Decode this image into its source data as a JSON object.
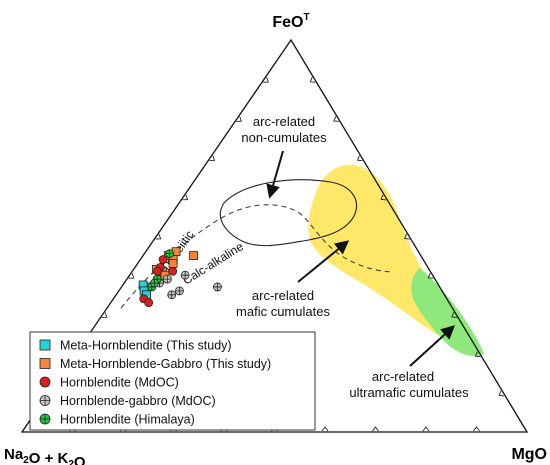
{
  "chart_data": {
    "type": "ternary",
    "vertices": {
      "top": {
        "main": "FeO",
        "sup": "T"
      },
      "left": {
        "parts": [
          [
            "Na",
            ""
          ],
          [
            "2",
            "sub"
          ],
          [
            "O + K",
            ""
          ],
          [
            "2",
            "sub"
          ],
          [
            "O",
            ""
          ]
        ]
      },
      "right": {
        "main": "MgO"
      }
    },
    "divisions": 10,
    "series_labels": {
      "tholeiitic": "Tholeiitic",
      "calc_alkaline": "Calc-alkaline"
    },
    "annotations": [
      {
        "id": "nc",
        "lines": [
          "arc-related",
          "non-cumulates"
        ]
      },
      {
        "id": "mc",
        "lines": [
          "arc-related",
          "mafic cumulates"
        ]
      },
      {
        "id": "uc",
        "lines": [
          "arc-related",
          "ultramafic cumulates"
        ]
      }
    ],
    "fields": {
      "mafic_color": "#ffe76a",
      "ultramafic_color": "#8ee87c"
    },
    "series": [
      {
        "name": "Meta-Hornblendite (This study)",
        "marker": "square",
        "color": "#22d3dc",
        "points": [
          [
            37,
            58,
            5
          ],
          [
            37.5,
            58.5,
            4
          ],
          [
            36,
            59,
            5
          ],
          [
            35,
            59,
            6
          ]
        ]
      },
      {
        "name": "Meta-Hornblende-Gabbro (This study)",
        "marker": "square",
        "color": "#f4853a",
        "points": [
          [
            45,
            50,
            5
          ],
          [
            46,
            48,
            6
          ],
          [
            44,
            49.5,
            6.5
          ],
          [
            43,
            50,
            7
          ],
          [
            41.5,
            54,
            4.5
          ],
          [
            41,
            53,
            6
          ],
          [
            40,
            53,
            7
          ],
          [
            45,
            45,
            10
          ]
        ]
      },
      {
        "name": "Hornblendite (MdOC)",
        "marker": "circle",
        "color": "#d62020",
        "points": [
          [
            44,
            51.5,
            4.5
          ],
          [
            42,
            53,
            5
          ],
          [
            41,
            54,
            5
          ],
          [
            39,
            55,
            6
          ],
          [
            34,
            60,
            6
          ],
          [
            33,
            59.5,
            7.5
          ],
          [
            41,
            51,
            8
          ]
        ]
      },
      {
        "name": "Hornblende-gabbro (MdOC)",
        "marker": "circle-plus",
        "color": "#c8c8c8",
        "points": [
          [
            40,
            49,
            11
          ],
          [
            39,
            53,
            8
          ],
          [
            36,
            52,
            12
          ],
          [
            38,
            55,
            7
          ],
          [
            35,
            54,
            11
          ],
          [
            37,
            44,
            19
          ]
        ]
      },
      {
        "name": "Hornblendite (Himalaya)",
        "marker": "circle-plus",
        "color": "#28c83a",
        "points": [
          [
            45.5,
            49.5,
            5
          ],
          [
            39,
            55,
            6
          ],
          [
            37,
            57,
            6
          ],
          [
            38,
            56,
            6
          ]
        ]
      }
    ]
  }
}
